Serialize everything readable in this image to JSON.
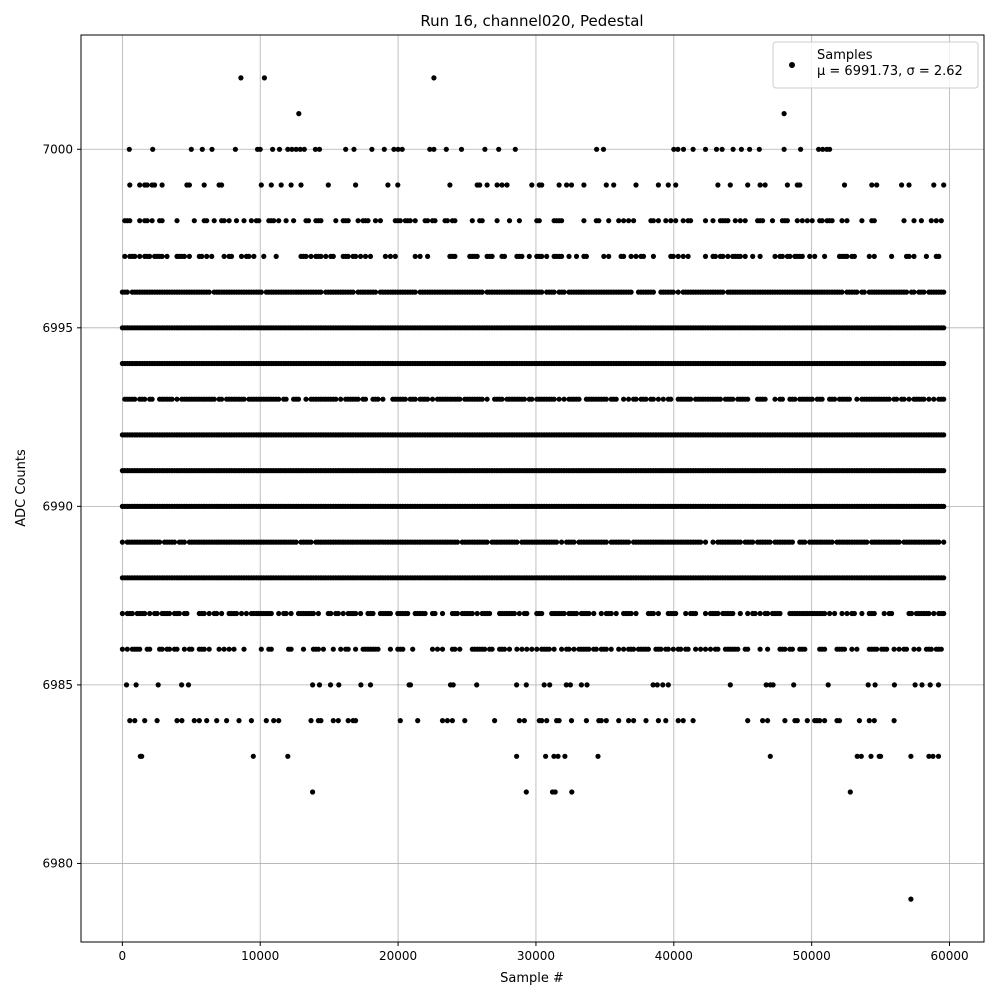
{
  "chart_data": {
    "type": "scatter",
    "title": "Run 16, channel020, Pedestal",
    "xlabel": "Sample #",
    "ylabel": "ADC Counts",
    "xlim": [
      -3000,
      62500
    ],
    "ylim": [
      6977.8,
      7003.2
    ],
    "xticks": [
      0,
      10000,
      20000,
      30000,
      40000,
      50000,
      60000
    ],
    "yticks": [
      6980,
      6985,
      6990,
      6995,
      7000
    ],
    "grid": true,
    "legend_position": "top-right",
    "point_color": "#000000",
    "series": [
      {
        "name": "Samples",
        "stats_label": "μ = 6991.73, σ = 2.62",
        "mean": 6991.73,
        "sigma": 2.62,
        "x_range": [
          0,
          59600
        ],
        "dense_levels": [
          {
            "y": 6996,
            "occupancy": 0.92
          },
          {
            "y": 6995,
            "occupancy": 1.0
          },
          {
            "y": 6994,
            "occupancy": 1.0
          },
          {
            "y": 6993,
            "occupancy": 0.78
          },
          {
            "y": 6992,
            "occupancy": 1.0
          },
          {
            "y": 6991,
            "occupancy": 1.0
          },
          {
            "y": 6990,
            "occupancy": 1.0
          },
          {
            "y": 6989,
            "occupancy": 0.9
          },
          {
            "y": 6988,
            "occupancy": 1.0
          },
          {
            "y": 6987,
            "occupancy": 0.62
          },
          {
            "y": 6986,
            "occupancy": 0.48
          },
          {
            "y": 6998,
            "occupancy": 0.38
          },
          {
            "y": 6997,
            "occupancy": 0.42
          },
          {
            "y": 6999,
            "occupancy": 0.22
          },
          {
            "y": 6984,
            "occupancy": 0.22
          }
        ],
        "sparse_points": [
          {
            "x": 8600,
            "y": 7002
          },
          {
            "x": 10300,
            "y": 7002
          },
          {
            "x": 22600,
            "y": 7002
          },
          {
            "x": 12800,
            "y": 7001
          },
          {
            "x": 48000,
            "y": 7001
          },
          {
            "x": 500,
            "y": 7000
          },
          {
            "x": 2200,
            "y": 7000
          },
          {
            "x": 5000,
            "y": 7000
          },
          {
            "x": 5800,
            "y": 7000
          },
          {
            "x": 6500,
            "y": 7000
          },
          {
            "x": 8200,
            "y": 7000
          },
          {
            "x": 9800,
            "y": 7000
          },
          {
            "x": 10000,
            "y": 7000
          },
          {
            "x": 10900,
            "y": 7000
          },
          {
            "x": 11400,
            "y": 7000
          },
          {
            "x": 12000,
            "y": 7000
          },
          {
            "x": 12300,
            "y": 7000
          },
          {
            "x": 12600,
            "y": 7000
          },
          {
            "x": 12900,
            "y": 7000
          },
          {
            "x": 13200,
            "y": 7000
          },
          {
            "x": 14000,
            "y": 7000
          },
          {
            "x": 14300,
            "y": 7000
          },
          {
            "x": 16200,
            "y": 7000
          },
          {
            "x": 16800,
            "y": 7000
          },
          {
            "x": 18100,
            "y": 7000
          },
          {
            "x": 19000,
            "y": 7000
          },
          {
            "x": 19700,
            "y": 7000
          },
          {
            "x": 20000,
            "y": 7000
          },
          {
            "x": 20300,
            "y": 7000
          },
          {
            "x": 22300,
            "y": 7000
          },
          {
            "x": 22600,
            "y": 7000
          },
          {
            "x": 23500,
            "y": 7000
          },
          {
            "x": 24600,
            "y": 7000
          },
          {
            "x": 26300,
            "y": 7000
          },
          {
            "x": 27300,
            "y": 7000
          },
          {
            "x": 28500,
            "y": 7000
          },
          {
            "x": 34400,
            "y": 7000
          },
          {
            "x": 34900,
            "y": 7000
          },
          {
            "x": 40000,
            "y": 7000
          },
          {
            "x": 40300,
            "y": 7000
          },
          {
            "x": 40700,
            "y": 7000
          },
          {
            "x": 41400,
            "y": 7000
          },
          {
            "x": 42300,
            "y": 7000
          },
          {
            "x": 43100,
            "y": 7000
          },
          {
            "x": 43500,
            "y": 7000
          },
          {
            "x": 44300,
            "y": 7000
          },
          {
            "x": 44900,
            "y": 7000
          },
          {
            "x": 45500,
            "y": 7000
          },
          {
            "x": 46200,
            "y": 7000
          },
          {
            "x": 48000,
            "y": 7000
          },
          {
            "x": 49200,
            "y": 7000
          },
          {
            "x": 50500,
            "y": 7000
          },
          {
            "x": 50800,
            "y": 7000
          },
          {
            "x": 51100,
            "y": 7000
          },
          {
            "x": 51300,
            "y": 7000
          },
          {
            "x": 300,
            "y": 6985
          },
          {
            "x": 1000,
            "y": 6985
          },
          {
            "x": 2600,
            "y": 6985
          },
          {
            "x": 4300,
            "y": 6985
          },
          {
            "x": 4800,
            "y": 6985
          },
          {
            "x": 13800,
            "y": 6985
          },
          {
            "x": 14300,
            "y": 6985
          },
          {
            "x": 15100,
            "y": 6985
          },
          {
            "x": 15700,
            "y": 6985
          },
          {
            "x": 17300,
            "y": 6985
          },
          {
            "x": 18000,
            "y": 6985
          },
          {
            "x": 20800,
            "y": 6985
          },
          {
            "x": 20900,
            "y": 6985
          },
          {
            "x": 23800,
            "y": 6985
          },
          {
            "x": 24000,
            "y": 6985
          },
          {
            "x": 25700,
            "y": 6985
          },
          {
            "x": 28600,
            "y": 6985
          },
          {
            "x": 29300,
            "y": 6985
          },
          {
            "x": 30600,
            "y": 6985
          },
          {
            "x": 31000,
            "y": 6985
          },
          {
            "x": 32200,
            "y": 6985
          },
          {
            "x": 32500,
            "y": 6985
          },
          {
            "x": 33300,
            "y": 6985
          },
          {
            "x": 33700,
            "y": 6985
          },
          {
            "x": 38500,
            "y": 6985
          },
          {
            "x": 38800,
            "y": 6985
          },
          {
            "x": 39200,
            "y": 6985
          },
          {
            "x": 39600,
            "y": 6985
          },
          {
            "x": 44100,
            "y": 6985
          },
          {
            "x": 46700,
            "y": 6985
          },
          {
            "x": 47000,
            "y": 6985
          },
          {
            "x": 47200,
            "y": 6985
          },
          {
            "x": 48700,
            "y": 6985
          },
          {
            "x": 51200,
            "y": 6985
          },
          {
            "x": 54100,
            "y": 6985
          },
          {
            "x": 54600,
            "y": 6985
          },
          {
            "x": 56000,
            "y": 6985
          },
          {
            "x": 57500,
            "y": 6985
          },
          {
            "x": 58000,
            "y": 6985
          },
          {
            "x": 58600,
            "y": 6985
          },
          {
            "x": 59200,
            "y": 6985
          },
          {
            "x": 1300,
            "y": 6983
          },
          {
            "x": 1400,
            "y": 6983
          },
          {
            "x": 9500,
            "y": 6983
          },
          {
            "x": 12000,
            "y": 6983
          },
          {
            "x": 28600,
            "y": 6983
          },
          {
            "x": 30700,
            "y": 6983
          },
          {
            "x": 31300,
            "y": 6983
          },
          {
            "x": 31600,
            "y": 6983
          },
          {
            "x": 32100,
            "y": 6983
          },
          {
            "x": 34500,
            "y": 6983
          },
          {
            "x": 47000,
            "y": 6983
          },
          {
            "x": 53300,
            "y": 6983
          },
          {
            "x": 53600,
            "y": 6983
          },
          {
            "x": 54300,
            "y": 6983
          },
          {
            "x": 54900,
            "y": 6983
          },
          {
            "x": 55000,
            "y": 6983
          },
          {
            "x": 57200,
            "y": 6983
          },
          {
            "x": 58500,
            "y": 6983
          },
          {
            "x": 58800,
            "y": 6983
          },
          {
            "x": 59200,
            "y": 6983
          },
          {
            "x": 13800,
            "y": 6982
          },
          {
            "x": 29300,
            "y": 6982
          },
          {
            "x": 31200,
            "y": 6982
          },
          {
            "x": 31400,
            "y": 6982
          },
          {
            "x": 32600,
            "y": 6982
          },
          {
            "x": 52800,
            "y": 6982
          },
          {
            "x": 57200,
            "y": 6979
          }
        ]
      }
    ]
  }
}
